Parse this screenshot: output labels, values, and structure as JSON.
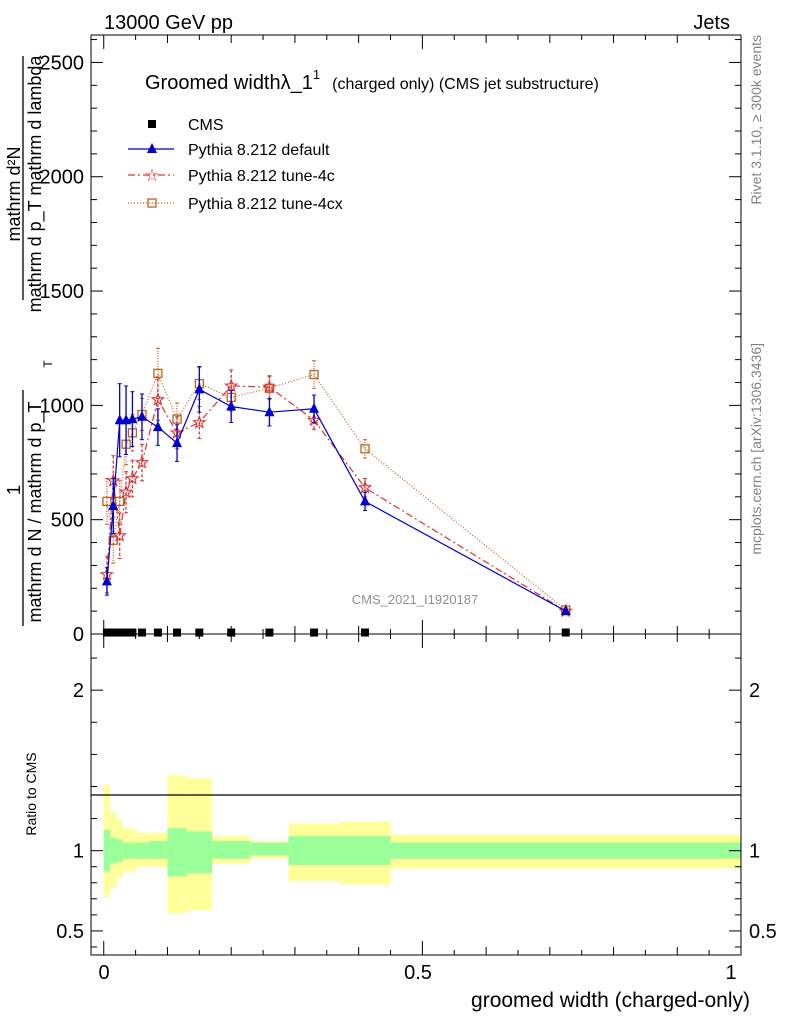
{
  "header": {
    "left": "13000 GeV pp",
    "right": "Jets"
  },
  "side": {
    "rivet": "Rivet 3.1.10, ≥ 300k events",
    "mcplots": "mcplots.cern.ch [arXiv:1306.3436]"
  },
  "chart_data": {
    "type": "line",
    "title_main": "Groomed widthλ_1",
    "title_sup": "1",
    "title_sub": "(charged only) (CMS jet substructure)",
    "analysis": "CMS_2021_I1920187",
    "ylabel_top_num": "mathrm d²N",
    "ylabel_top_den": "mathrm d p_T mathrm d lambda",
    "ylabel_bot_one": "1",
    "ylabel_bot_den": "mathrm d N / mathrm d p_T",
    "ylabel_sub": "T",
    "xlabel": "groomed width (charged-only)",
    "ratio_ylabel": "Ratio to CMS",
    "xlim": [
      -0.02,
      1.0
    ],
    "ylim": [
      0,
      2620
    ],
    "ratio_ylim": [
      0.35,
      2.35
    ],
    "x_ticks": [
      "0",
      "0.5",
      "1"
    ],
    "y_ticks": [
      "0",
      "500",
      "1000",
      "1500",
      "2000",
      "2500"
    ],
    "ratio_ticks": [
      "0.5",
      "1",
      "2"
    ],
    "legend": [
      "CMS",
      "Pythia 8.212 default",
      "Pythia 8.212 tune-4c",
      "Pythia 8.212 tune-4cx"
    ],
    "bins": [
      0.0,
      0.01,
      0.02,
      0.03,
      0.04,
      0.05,
      0.07,
      0.1,
      0.13,
      0.17,
      0.23,
      0.29,
      0.37,
      0.45,
      1.0
    ],
    "series": [
      {
        "name": "CMS",
        "color": "#000000",
        "x": [
          0.005,
          0.015,
          0.025,
          0.035,
          0.045,
          0.06,
          0.085,
          0.115,
          0.15,
          0.2,
          0.26,
          0.33,
          0.41,
          0.725
        ],
        "values": [
          2,
          2,
          2,
          2,
          2,
          2,
          2,
          2,
          2,
          2,
          2,
          2,
          2,
          2
        ]
      },
      {
        "name": "Pythia 8.212 default",
        "color": "#0000cc",
        "x": [
          0.005,
          0.015,
          0.025,
          0.035,
          0.045,
          0.06,
          0.085,
          0.115,
          0.15,
          0.2,
          0.26,
          0.33,
          0.41,
          0.725
        ],
        "values": [
          230,
          560,
          935,
          935,
          940,
          950,
          905,
          835,
          1070,
          995,
          970,
          985,
          580,
          100
        ],
        "errors": [
          60,
          120,
          160,
          150,
          120,
          100,
          80,
          80,
          100,
          70,
          60,
          60,
          40,
          10
        ]
      },
      {
        "name": "Pythia 8.212 tune-4c",
        "color": "#dd3333",
        "x": [
          0.005,
          0.015,
          0.025,
          0.035,
          0.045,
          0.06,
          0.085,
          0.115,
          0.15,
          0.2,
          0.26,
          0.33,
          0.41,
          0.725
        ],
        "values": [
          260,
          670,
          430,
          620,
          680,
          750,
          1025,
          880,
          925,
          1085,
          1080,
          935,
          640,
          100
        ],
        "errors": [
          80,
          110,
          100,
          90,
          80,
          80,
          90,
          70,
          70,
          70,
          50,
          40,
          40,
          10
        ]
      },
      {
        "name": "Pythia 8.212 tune-4cx",
        "color": "#c06020",
        "x": [
          0.005,
          0.015,
          0.025,
          0.035,
          0.045,
          0.06,
          0.085,
          0.115,
          0.15,
          0.2,
          0.26,
          0.33,
          0.41,
          0.725
        ],
        "values": [
          580,
          410,
          580,
          830,
          880,
          960,
          1140,
          940,
          1095,
          1035,
          1075,
          1135,
          810,
          105
        ],
        "errors": [
          100,
          100,
          90,
          90,
          80,
          70,
          110,
          70,
          70,
          60,
          50,
          60,
          40,
          10
        ]
      }
    ],
    "ratio_bands": {
      "green_lo": [
        0.87,
        0.92,
        0.93,
        0.95,
        0.95,
        0.95,
        0.95,
        0.84,
        0.86,
        0.95,
        0.97,
        0.91,
        0.91,
        0.95
      ],
      "green_hi": [
        1.13,
        1.08,
        1.07,
        1.05,
        1.05,
        1.05,
        1.06,
        1.14,
        1.12,
        1.06,
        1.05,
        1.09,
        1.09,
        1.05
      ],
      "yellow_lo": [
        0.71,
        0.77,
        0.83,
        0.87,
        0.87,
        0.9,
        0.9,
        0.61,
        0.63,
        0.92,
        0.95,
        0.81,
        0.79,
        0.89
      ],
      "yellow_hi": [
        1.41,
        1.24,
        1.19,
        1.14,
        1.14,
        1.11,
        1.11,
        1.47,
        1.45,
        1.09,
        1.06,
        1.17,
        1.18,
        1.1
      ]
    }
  }
}
